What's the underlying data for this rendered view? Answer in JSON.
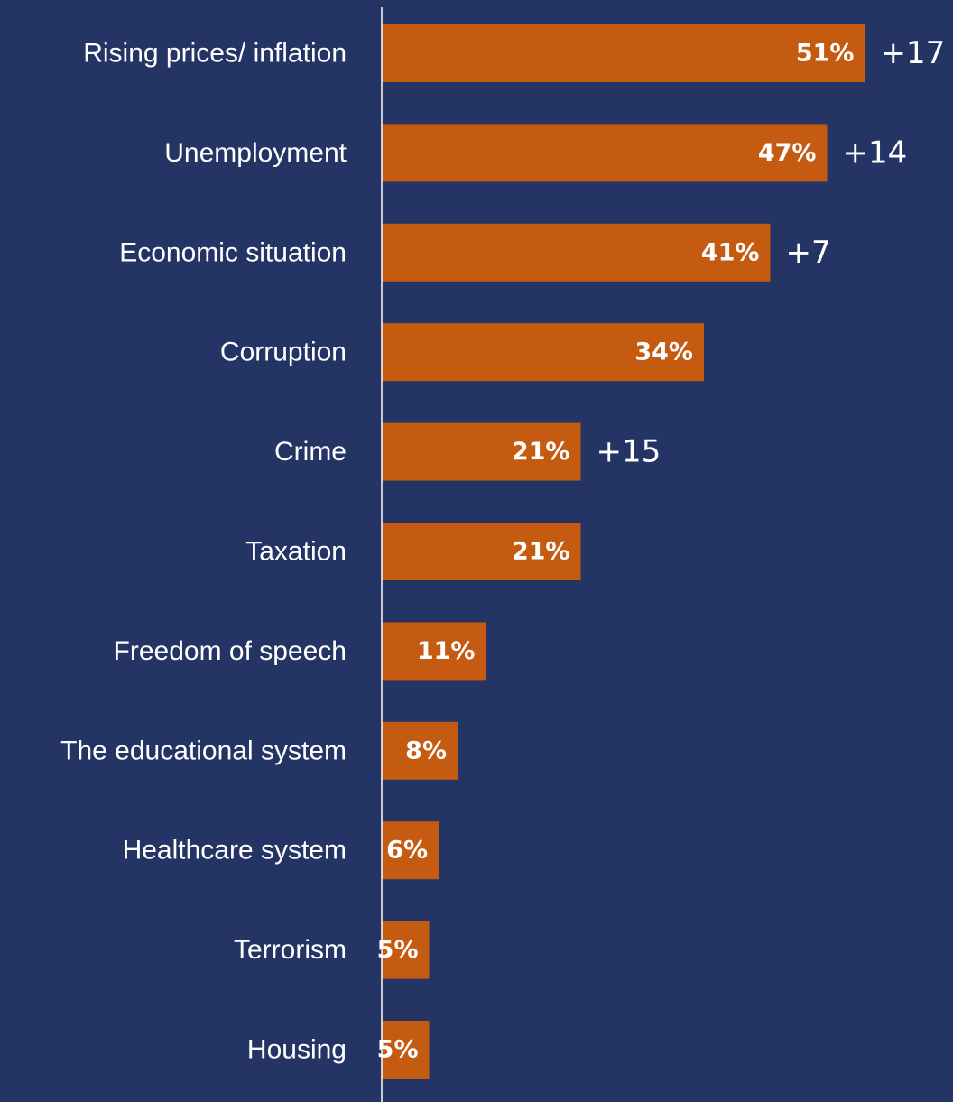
{
  "chart_data": {
    "type": "bar",
    "orientation": "horizontal",
    "categories": [
      "Rising prices/ inflation",
      "Unemployment",
      "Economic situation",
      "Corruption",
      "Crime",
      "Taxation",
      "Freedom of speech",
      "The educational system",
      "Healthcare system",
      "Terrorism",
      "Housing"
    ],
    "values": [
      51,
      47,
      41,
      34,
      21,
      21,
      11,
      8,
      6,
      5,
      5
    ],
    "value_labels": [
      "51%",
      "47%",
      "41%",
      "34%",
      "21%",
      "21%",
      "11%",
      "8%",
      "6%",
      "5%",
      "5%"
    ],
    "changes": [
      "+17",
      "+14",
      "+7",
      "",
      "+15",
      "",
      "",
      "",
      "",
      "",
      ""
    ],
    "xlim": [
      0,
      60
    ],
    "grid": false,
    "legend": "none",
    "colors": {
      "background": "#243464",
      "bar": "#c55a11",
      "text": "#ffffff",
      "axis": "#ffffff"
    }
  }
}
